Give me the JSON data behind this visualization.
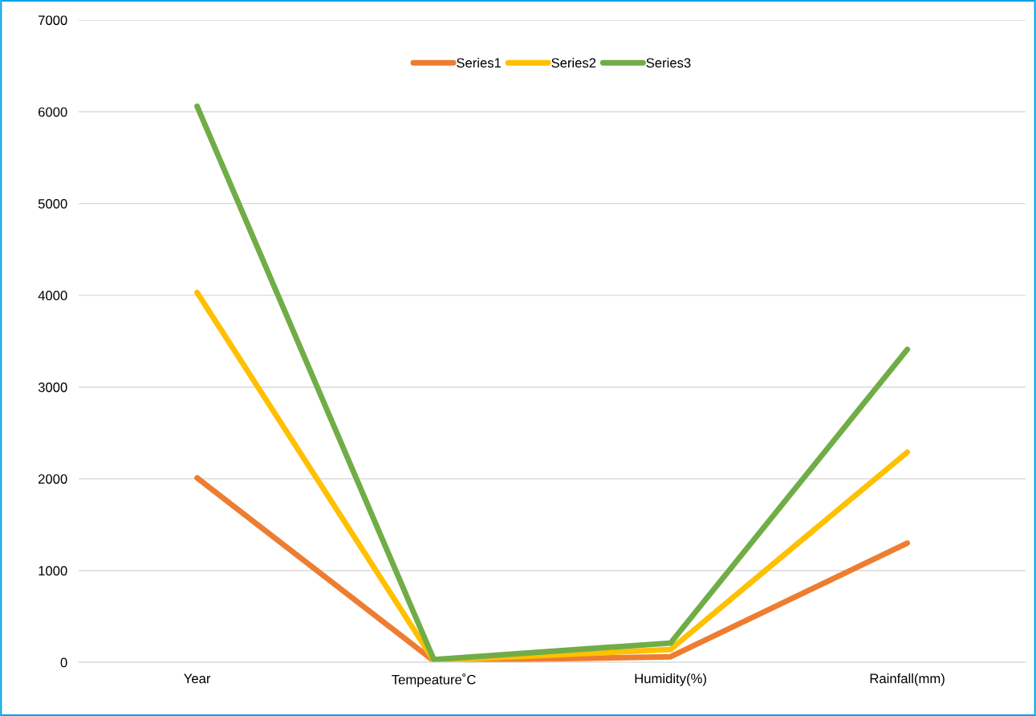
{
  "chart_data": {
    "type": "line",
    "categories": [
      "Year",
      "Tempeature˚C",
      "Humidity(%)",
      "Rainfall(mm)"
    ],
    "series": [
      {
        "name": "Series1",
        "color": "#ed7d31",
        "values": [
          2010,
          15,
          60,
          1300
        ]
      },
      {
        "name": "Series2",
        "color": "#ffc000",
        "values": [
          4030,
          20,
          140,
          2290
        ]
      },
      {
        "name": "Series3",
        "color": "#70ad47",
        "values": [
          6060,
          30,
          210,
          3410
        ]
      }
    ],
    "ylim": [
      0,
      7000
    ],
    "yticks": [
      0,
      1000,
      2000,
      3000,
      4000,
      5000,
      6000,
      7000
    ],
    "grid": "y",
    "legend": "top",
    "marker": "none",
    "line_style": "solid"
  }
}
